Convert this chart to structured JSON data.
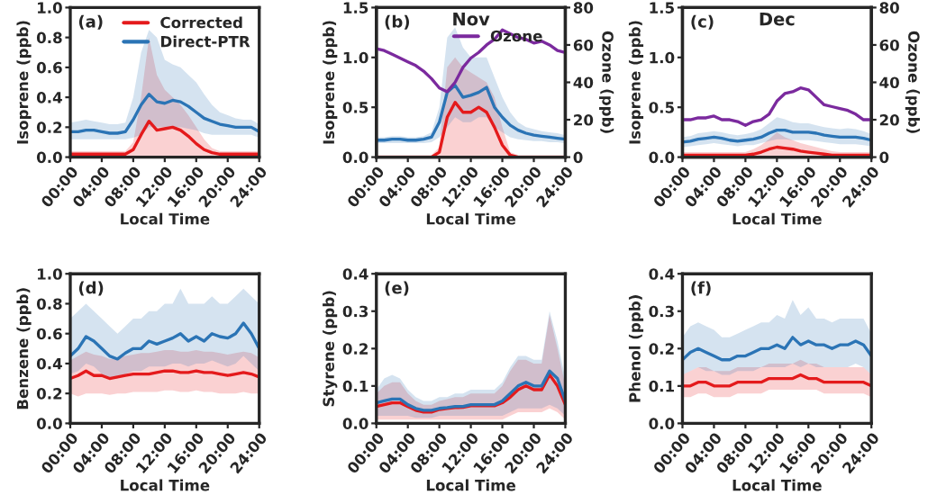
{
  "chart_data": [
    {
      "type": "line",
      "annotations": [
        "(a)"
      ],
      "xlabel": "Local Time",
      "ylabel": "Isoprene (ppb)",
      "legend": "top right",
      "x": [
        0,
        1,
        2,
        3,
        4,
        5,
        6,
        7,
        8,
        9,
        10,
        11,
        12,
        13,
        14,
        15,
        16,
        17,
        18,
        19,
        20,
        21,
        22,
        23,
        24
      ],
      "xlim": [
        0,
        24
      ],
      "xticks": [
        {
          "value": 0,
          "label": "00:00"
        },
        {
          "value": 4,
          "label": "04:00"
        },
        {
          "value": 8,
          "label": "08:00"
        },
        {
          "value": 12,
          "label": "12:00"
        },
        {
          "value": 16,
          "label": "16:00"
        },
        {
          "value": 20,
          "label": "20:00"
        },
        {
          "value": 24,
          "label": "24:00"
        }
      ],
      "ylim": [
        0,
        1
      ],
      "yticks": [
        {
          "value": 0,
          "label": "0.0"
        },
        {
          "value": 0.2,
          "label": "0.2"
        },
        {
          "value": 0.4,
          "label": "0.4"
        },
        {
          "value": 0.6,
          "label": "0.6"
        },
        {
          "value": 0.8,
          "label": "0.8"
        },
        {
          "value": 1,
          "label": "1.0"
        }
      ],
      "series": [
        {
          "name": "Corrected",
          "color": "#e41a1c",
          "values": [
            0.02,
            0.02,
            0.02,
            0.02,
            0.02,
            0.02,
            0.02,
            0.02,
            0.05,
            0.15,
            0.24,
            0.18,
            0.19,
            0.2,
            0.18,
            0.14,
            0.09,
            0.05,
            0.03,
            0.02,
            0.02,
            0.02,
            0.02,
            0.02,
            0.02
          ],
          "lower": [
            0,
            0,
            0,
            0,
            0,
            0,
            0,
            0,
            0,
            0,
            0,
            0,
            0,
            0,
            0,
            0,
            0,
            0,
            0,
            0,
            0,
            0,
            0,
            0,
            0
          ],
          "upper": [
            0.04,
            0.04,
            0.04,
            0.04,
            0.04,
            0.04,
            0.04,
            0.04,
            0.1,
            0.4,
            0.8,
            0.55,
            0.45,
            0.4,
            0.35,
            0.28,
            0.2,
            0.12,
            0.06,
            0.04,
            0.04,
            0.04,
            0.04,
            0.04,
            0.04
          ]
        },
        {
          "name": "Direct-PTR",
          "color": "#2b74b5",
          "values": [
            0.17,
            0.17,
            0.18,
            0.18,
            0.17,
            0.16,
            0.16,
            0.17,
            0.25,
            0.35,
            0.42,
            0.37,
            0.36,
            0.38,
            0.37,
            0.34,
            0.3,
            0.26,
            0.24,
            0.22,
            0.21,
            0.2,
            0.2,
            0.2,
            0.17
          ],
          "lower": [
            0.12,
            0.12,
            0.12,
            0.12,
            0.12,
            0.12,
            0.12,
            0.12,
            0.13,
            0.15,
            0.2,
            0.2,
            0.2,
            0.2,
            0.2,
            0.19,
            0.18,
            0.16,
            0.15,
            0.15,
            0.15,
            0.15,
            0.15,
            0.15,
            0.13
          ],
          "upper": [
            0.23,
            0.24,
            0.25,
            0.24,
            0.23,
            0.22,
            0.22,
            0.23,
            0.4,
            0.7,
            0.85,
            0.8,
            0.65,
            0.62,
            0.6,
            0.55,
            0.5,
            0.42,
            0.35,
            0.3,
            0.28,
            0.26,
            0.25,
            0.25,
            0.22
          ]
        }
      ]
    },
    {
      "type": "line",
      "title": "Nov",
      "annotations": [
        "(b)"
      ],
      "xlabel": "Local Time",
      "ylabel": "Isoprene (ppb)",
      "y2label": "Ozone (ppb)",
      "legend": "top right",
      "x": [
        0,
        1,
        2,
        3,
        4,
        5,
        6,
        7,
        8,
        9,
        10,
        11,
        12,
        13,
        14,
        15,
        16,
        17,
        18,
        19,
        20,
        21,
        22,
        23,
        24
      ],
      "xlim": [
        0,
        24
      ],
      "xticks": [
        {
          "value": 0,
          "label": "00:00"
        },
        {
          "value": 4,
          "label": "04:00"
        },
        {
          "value": 8,
          "label": "08:00"
        },
        {
          "value": 12,
          "label": "12:00"
        },
        {
          "value": 16,
          "label": "16:00"
        },
        {
          "value": 20,
          "label": "20:00"
        },
        {
          "value": 24,
          "label": "24:00"
        }
      ],
      "ylim": [
        0,
        1.5
      ],
      "yticks": [
        {
          "value": 0,
          "label": "0.0"
        },
        {
          "value": 0.5,
          "label": "0.5"
        },
        {
          "value": 1,
          "label": "1.0"
        },
        {
          "value": 1.5,
          "label": "1.5"
        }
      ],
      "y2lim": [
        0,
        80
      ],
      "y2ticks": [
        0,
        20,
        40,
        60,
        80
      ],
      "series": [
        {
          "color": "#e41a1c",
          "values": [
            null,
            null,
            null,
            null,
            null,
            null,
            0,
            0,
            0.05,
            0.4,
            0.55,
            0.45,
            0.45,
            0.5,
            0.45,
            0.3,
            0.12,
            0.02,
            0,
            null,
            null,
            null,
            null,
            null,
            null
          ],
          "lower": [
            0,
            0,
            0,
            0,
            0,
            0,
            0,
            0,
            0,
            0,
            0,
            0,
            0,
            0,
            0,
            0,
            0,
            0,
            0,
            0,
            0,
            0,
            0,
            0,
            0
          ],
          "upper": [
            0.02,
            0.02,
            0.02,
            0.02,
            0.02,
            0.02,
            0.02,
            0.02,
            0.1,
            0.9,
            1,
            0.9,
            0.85,
            0.8,
            0.75,
            0.6,
            0.3,
            0.05,
            0.02,
            0.02,
            0.02,
            0.02,
            0.02,
            0.02,
            0.02
          ]
        },
        {
          "color": "#2b74b5",
          "values": [
            0.17,
            0.17,
            0.18,
            0.18,
            0.17,
            0.17,
            0.18,
            0.2,
            0.35,
            0.65,
            0.72,
            0.6,
            0.62,
            0.65,
            0.7,
            0.5,
            0.4,
            0.32,
            0.27,
            0.24,
            0.22,
            0.21,
            0.2,
            0.19,
            0.18
          ],
          "lower": [
            0.14,
            0.14,
            0.14,
            0.14,
            0.14,
            0.14,
            0.14,
            0.15,
            0.2,
            0.3,
            0.4,
            0.35,
            0.35,
            0.4,
            0.4,
            0.3,
            0.25,
            0.2,
            0.18,
            0.17,
            0.16,
            0.16,
            0.15,
            0.15,
            0.14
          ],
          "upper": [
            0.2,
            0.2,
            0.21,
            0.21,
            0.2,
            0.2,
            0.21,
            0.25,
            0.5,
            1.2,
            1.3,
            1.1,
            1,
            1,
            1,
            0.8,
            0.6,
            0.45,
            0.35,
            0.3,
            0.28,
            0.26,
            0.25,
            0.24,
            0.22
          ]
        },
        {
          "name": "Ozone",
          "color": "#7b2a9e",
          "axis": "y2",
          "values": [
            58,
            57,
            55,
            53,
            51,
            49,
            46,
            42,
            37,
            35,
            40,
            48,
            53,
            56,
            60,
            63,
            68,
            66,
            64,
            63,
            61,
            62,
            60,
            57,
            56
          ]
        }
      ]
    },
    {
      "type": "line",
      "title": "Dec",
      "annotations": [
        "(c)"
      ],
      "xlabel": "Local Time",
      "ylabel": "Isoprene (ppb)",
      "y2label": "Ozone (ppb)",
      "x": [
        0,
        1,
        2,
        3,
        4,
        5,
        6,
        7,
        8,
        9,
        10,
        11,
        12,
        13,
        14,
        15,
        16,
        17,
        18,
        19,
        20,
        21,
        22,
        23,
        24
      ],
      "xlim": [
        0,
        24
      ],
      "xticks": [
        {
          "value": 0,
          "label": "00:00"
        },
        {
          "value": 4,
          "label": "04:00"
        },
        {
          "value": 8,
          "label": "08:00"
        },
        {
          "value": 12,
          "label": "12:00"
        },
        {
          "value": 16,
          "label": "16:00"
        },
        {
          "value": 20,
          "label": "20:00"
        },
        {
          "value": 24,
          "label": "24:00"
        }
      ],
      "ylim": [
        0,
        1.5
      ],
      "yticks": [
        {
          "value": 0,
          "label": "0.0"
        },
        {
          "value": 0.5,
          "label": "0.5"
        },
        {
          "value": 1,
          "label": "1.0"
        },
        {
          "value": 1.5,
          "label": "1.5"
        }
      ],
      "y2lim": [
        0,
        80
      ],
      "y2ticks": [
        0,
        20,
        40,
        60,
        80
      ],
      "series": [
        {
          "color": "#e41a1c",
          "values": [
            0.02,
            0.02,
            0.02,
            0.02,
            0.02,
            0.02,
            0.02,
            0.02,
            0.02,
            0.03,
            0.05,
            0.08,
            0.1,
            0.09,
            0.08,
            0.06,
            0.05,
            0.04,
            0.03,
            0.02,
            0.02,
            0.02,
            0.02,
            0.02,
            0.02
          ],
          "lower": [
            0,
            0,
            0,
            0,
            0,
            0,
            0,
            0,
            0,
            0,
            0,
            0,
            0,
            0,
            0,
            0,
            0,
            0,
            0,
            0,
            0,
            0,
            0,
            0,
            0
          ],
          "upper": [
            0.05,
            0.05,
            0.05,
            0.05,
            0.05,
            0.05,
            0.05,
            0.05,
            0.05,
            0.08,
            0.12,
            0.18,
            0.25,
            0.2,
            0.17,
            0.14,
            0.12,
            0.1,
            0.08,
            0.06,
            0.05,
            0.05,
            0.05,
            0.05,
            0.05
          ]
        },
        {
          "color": "#2b74b5",
          "values": [
            0.15,
            0.16,
            0.18,
            0.19,
            0.2,
            0.19,
            0.17,
            0.16,
            0.17,
            0.18,
            0.2,
            0.24,
            0.27,
            0.27,
            0.25,
            0.25,
            0.25,
            0.24,
            0.22,
            0.21,
            0.2,
            0.2,
            0.2,
            0.19,
            0.17
          ],
          "lower": [
            0.1,
            0.11,
            0.12,
            0.13,
            0.14,
            0.13,
            0.12,
            0.11,
            0.12,
            0.12,
            0.14,
            0.16,
            0.18,
            0.18,
            0.17,
            0.17,
            0.17,
            0.16,
            0.15,
            0.14,
            0.13,
            0.13,
            0.13,
            0.12,
            0.11
          ],
          "upper": [
            0.2,
            0.21,
            0.24,
            0.25,
            0.26,
            0.25,
            0.23,
            0.22,
            0.23,
            0.25,
            0.28,
            0.34,
            0.4,
            0.38,
            0.35,
            0.34,
            0.34,
            0.32,
            0.3,
            0.29,
            0.28,
            0.29,
            0.28,
            0.26,
            0.23
          ]
        },
        {
          "color": "#7b2a9e",
          "axis": "y2",
          "values": [
            20,
            20,
            21,
            21,
            22,
            20,
            20,
            19,
            17,
            19,
            20,
            23,
            30,
            34,
            35,
            37,
            36,
            32,
            28,
            27,
            26,
            25,
            23,
            20,
            20
          ]
        }
      ]
    },
    {
      "type": "line",
      "annotations": [
        "(d)"
      ],
      "xlabel": "Local Time",
      "ylabel": "Benzene (ppb)",
      "x": [
        0,
        1,
        2,
        3,
        4,
        5,
        6,
        7,
        8,
        9,
        10,
        11,
        12,
        13,
        14,
        15,
        16,
        17,
        18,
        19,
        20,
        21,
        22,
        23,
        24
      ],
      "xlim": [
        0,
        24
      ],
      "xticks": [
        {
          "value": 0,
          "label": "00:00"
        },
        {
          "value": 4,
          "label": "04:00"
        },
        {
          "value": 8,
          "label": "08:00"
        },
        {
          "value": 12,
          "label": "12:00"
        },
        {
          "value": 16,
          "label": "16:00"
        },
        {
          "value": 20,
          "label": "20:00"
        },
        {
          "value": 24,
          "label": "24:00"
        }
      ],
      "ylim": [
        0,
        1
      ],
      "yticks": [
        {
          "value": 0,
          "label": "0.0"
        },
        {
          "value": 0.2,
          "label": "0.2"
        },
        {
          "value": 0.4,
          "label": "0.4"
        },
        {
          "value": 0.6,
          "label": "0.6"
        },
        {
          "value": 0.8,
          "label": "0.8"
        },
        {
          "value": 1,
          "label": "1.0"
        }
      ],
      "series": [
        {
          "color": "#e41a1c",
          "values": [
            0.3,
            0.32,
            0.35,
            0.32,
            0.32,
            0.3,
            0.31,
            0.32,
            0.33,
            0.33,
            0.33,
            0.34,
            0.35,
            0.35,
            0.34,
            0.34,
            0.35,
            0.34,
            0.34,
            0.33,
            0.32,
            0.33,
            0.34,
            0.33,
            0.31
          ],
          "lower": [
            0.2,
            0.18,
            0.2,
            0.2,
            0.2,
            0.19,
            0.2,
            0.2,
            0.21,
            0.21,
            0.21,
            0.21,
            0.22,
            0.22,
            0.21,
            0.21,
            0.22,
            0.21,
            0.21,
            0.2,
            0.2,
            0.2,
            0.21,
            0.2,
            0.2
          ],
          "upper": [
            0.42,
            0.45,
            0.48,
            0.46,
            0.45,
            0.43,
            0.44,
            0.45,
            0.46,
            0.47,
            0.47,
            0.48,
            0.49,
            0.49,
            0.48,
            0.48,
            0.49,
            0.48,
            0.48,
            0.47,
            0.46,
            0.47,
            0.48,
            0.47,
            0.44
          ]
        },
        {
          "color": "#2b74b5",
          "values": [
            0.45,
            0.5,
            0.58,
            0.55,
            0.5,
            0.45,
            0.43,
            0.47,
            0.5,
            0.5,
            0.55,
            0.53,
            0.55,
            0.57,
            0.6,
            0.55,
            0.58,
            0.55,
            0.6,
            0.58,
            0.57,
            0.6,
            0.67,
            0.6,
            0.5
          ],
          "lower": [
            0.33,
            0.35,
            0.4,
            0.38,
            0.33,
            0.3,
            0.3,
            0.33,
            0.35,
            0.35,
            0.38,
            0.38,
            0.38,
            0.4,
            0.4,
            0.38,
            0.4,
            0.4,
            0.42,
            0.4,
            0.38,
            0.4,
            0.45,
            0.4,
            0.35
          ],
          "upper": [
            0.7,
            0.75,
            0.8,
            0.75,
            0.7,
            0.65,
            0.6,
            0.65,
            0.7,
            0.7,
            0.75,
            0.75,
            0.8,
            0.8,
            0.9,
            0.8,
            0.8,
            0.8,
            0.85,
            0.8,
            0.8,
            0.85,
            0.9,
            0.85,
            0.8
          ]
        }
      ]
    },
    {
      "type": "line",
      "annotations": [
        "(e)"
      ],
      "xlabel": "Local Time",
      "ylabel": "Styrene (ppb)",
      "x": [
        0,
        1,
        2,
        3,
        4,
        5,
        6,
        7,
        8,
        9,
        10,
        11,
        12,
        13,
        14,
        15,
        16,
        17,
        18,
        19,
        20,
        21,
        22,
        23,
        24
      ],
      "xlim": [
        0,
        24
      ],
      "xticks": [
        {
          "value": 0,
          "label": "00:00"
        },
        {
          "value": 4,
          "label": "04:00"
        },
        {
          "value": 8,
          "label": "08:00"
        },
        {
          "value": 12,
          "label": "12:00"
        },
        {
          "value": 16,
          "label": "16:00"
        },
        {
          "value": 20,
          "label": "20:00"
        },
        {
          "value": 24,
          "label": "24:00"
        }
      ],
      "ylim": [
        0,
        0.4
      ],
      "yticks": [
        {
          "value": 0,
          "label": "0.0"
        },
        0.1,
        0.2,
        0.3,
        0.4
      ],
      "series": [
        {
          "color": "#e41a1c",
          "values": [
            0.045,
            0.05,
            0.055,
            0.055,
            0.045,
            0.035,
            0.03,
            0.03,
            0.037,
            0.04,
            0.042,
            0.043,
            0.047,
            0.047,
            0.047,
            0.047,
            0.055,
            0.07,
            0.09,
            0.1,
            0.09,
            0.09,
            0.13,
            0.1,
            0.05
          ],
          "lower": [
            0.01,
            0.01,
            0.01,
            0.01,
            0.01,
            0.01,
            0.01,
            0.01,
            0.01,
            0.01,
            0.01,
            0.01,
            0.01,
            0.01,
            0.01,
            0.01,
            0.01,
            0.02,
            0.03,
            0.03,
            0.03,
            0.03,
            0.04,
            0.03,
            0.01
          ],
          "upper": [
            0.08,
            0.1,
            0.11,
            0.11,
            0.08,
            0.06,
            0.05,
            0.05,
            0.06,
            0.065,
            0.07,
            0.07,
            0.08,
            0.08,
            0.08,
            0.08,
            0.1,
            0.14,
            0.17,
            0.17,
            0.16,
            0.16,
            0.29,
            0.2,
            0.1
          ]
        },
        {
          "color": "#2b74b5",
          "values": [
            0.055,
            0.06,
            0.065,
            0.065,
            0.05,
            0.04,
            0.035,
            0.035,
            0.04,
            0.042,
            0.045,
            0.045,
            0.05,
            0.05,
            0.05,
            0.05,
            0.06,
            0.08,
            0.1,
            0.11,
            0.1,
            0.1,
            0.14,
            0.12,
            0.06
          ],
          "lower": [
            0.02,
            0.02,
            0.02,
            0.02,
            0.02,
            0.015,
            0.015,
            0.015,
            0.02,
            0.02,
            0.02,
            0.02,
            0.02,
            0.02,
            0.02,
            0.02,
            0.02,
            0.03,
            0.04,
            0.04,
            0.04,
            0.04,
            0.05,
            0.04,
            0.02
          ],
          "upper": [
            0.09,
            0.12,
            0.13,
            0.12,
            0.09,
            0.07,
            0.06,
            0.06,
            0.07,
            0.07,
            0.08,
            0.08,
            0.09,
            0.09,
            0.09,
            0.09,
            0.11,
            0.15,
            0.18,
            0.18,
            0.17,
            0.17,
            0.3,
            0.22,
            0.12
          ]
        }
      ]
    },
    {
      "type": "line",
      "annotations": [
        "(f)"
      ],
      "xlabel": "Local Time",
      "ylabel": "Phenol (ppb)",
      "x": [
        0,
        1,
        2,
        3,
        4,
        5,
        6,
        7,
        8,
        9,
        10,
        11,
        12,
        13,
        14,
        15,
        16,
        17,
        18,
        19,
        20,
        21,
        22,
        23,
        24
      ],
      "xlim": [
        0,
        24
      ],
      "xticks": [
        {
          "value": 0,
          "label": "00:00"
        },
        {
          "value": 4,
          "label": "04:00"
        },
        {
          "value": 8,
          "label": "08:00"
        },
        {
          "value": 12,
          "label": "12:00"
        },
        {
          "value": 16,
          "label": "16:00"
        },
        {
          "value": 20,
          "label": "20:00"
        },
        {
          "value": 24,
          "label": "24:00"
        }
      ],
      "ylim": [
        0,
        0.4
      ],
      "yticks": [
        {
          "value": 0,
          "label": "0.0"
        },
        0.1,
        0.2,
        0.3,
        0.4
      ],
      "series": [
        {
          "color": "#e41a1c",
          "values": [
            0.1,
            0.1,
            0.11,
            0.11,
            0.1,
            0.1,
            0.1,
            0.11,
            0.11,
            0.11,
            0.11,
            0.12,
            0.12,
            0.12,
            0.12,
            0.13,
            0.12,
            0.12,
            0.11,
            0.11,
            0.11,
            0.11,
            0.11,
            0.11,
            0.1
          ],
          "lower": [
            0.07,
            0.07,
            0.08,
            0.08,
            0.07,
            0.07,
            0.07,
            0.08,
            0.08,
            0.08,
            0.08,
            0.09,
            0.09,
            0.09,
            0.09,
            0.09,
            0.09,
            0.09,
            0.08,
            0.08,
            0.08,
            0.08,
            0.08,
            0.08,
            0.07
          ],
          "upper": [
            0.13,
            0.14,
            0.15,
            0.15,
            0.14,
            0.14,
            0.14,
            0.15,
            0.15,
            0.15,
            0.15,
            0.16,
            0.16,
            0.16,
            0.16,
            0.17,
            0.16,
            0.16,
            0.15,
            0.15,
            0.15,
            0.15,
            0.15,
            0.15,
            0.13
          ]
        },
        {
          "color": "#2b74b5",
          "values": [
            0.17,
            0.19,
            0.2,
            0.19,
            0.18,
            0.17,
            0.17,
            0.18,
            0.18,
            0.19,
            0.2,
            0.2,
            0.21,
            0.2,
            0.23,
            0.21,
            0.22,
            0.21,
            0.21,
            0.2,
            0.21,
            0.21,
            0.22,
            0.21,
            0.18
          ],
          "lower": [
            0.13,
            0.14,
            0.15,
            0.14,
            0.14,
            0.13,
            0.13,
            0.14,
            0.14,
            0.14,
            0.15,
            0.15,
            0.15,
            0.15,
            0.16,
            0.15,
            0.16,
            0.15,
            0.15,
            0.15,
            0.15,
            0.15,
            0.16,
            0.15,
            0.13
          ],
          "upper": [
            0.23,
            0.26,
            0.27,
            0.26,
            0.25,
            0.23,
            0.23,
            0.24,
            0.25,
            0.26,
            0.27,
            0.27,
            0.29,
            0.28,
            0.33,
            0.29,
            0.31,
            0.28,
            0.28,
            0.27,
            0.28,
            0.28,
            0.28,
            0.28,
            0.24
          ]
        }
      ]
    }
  ]
}
